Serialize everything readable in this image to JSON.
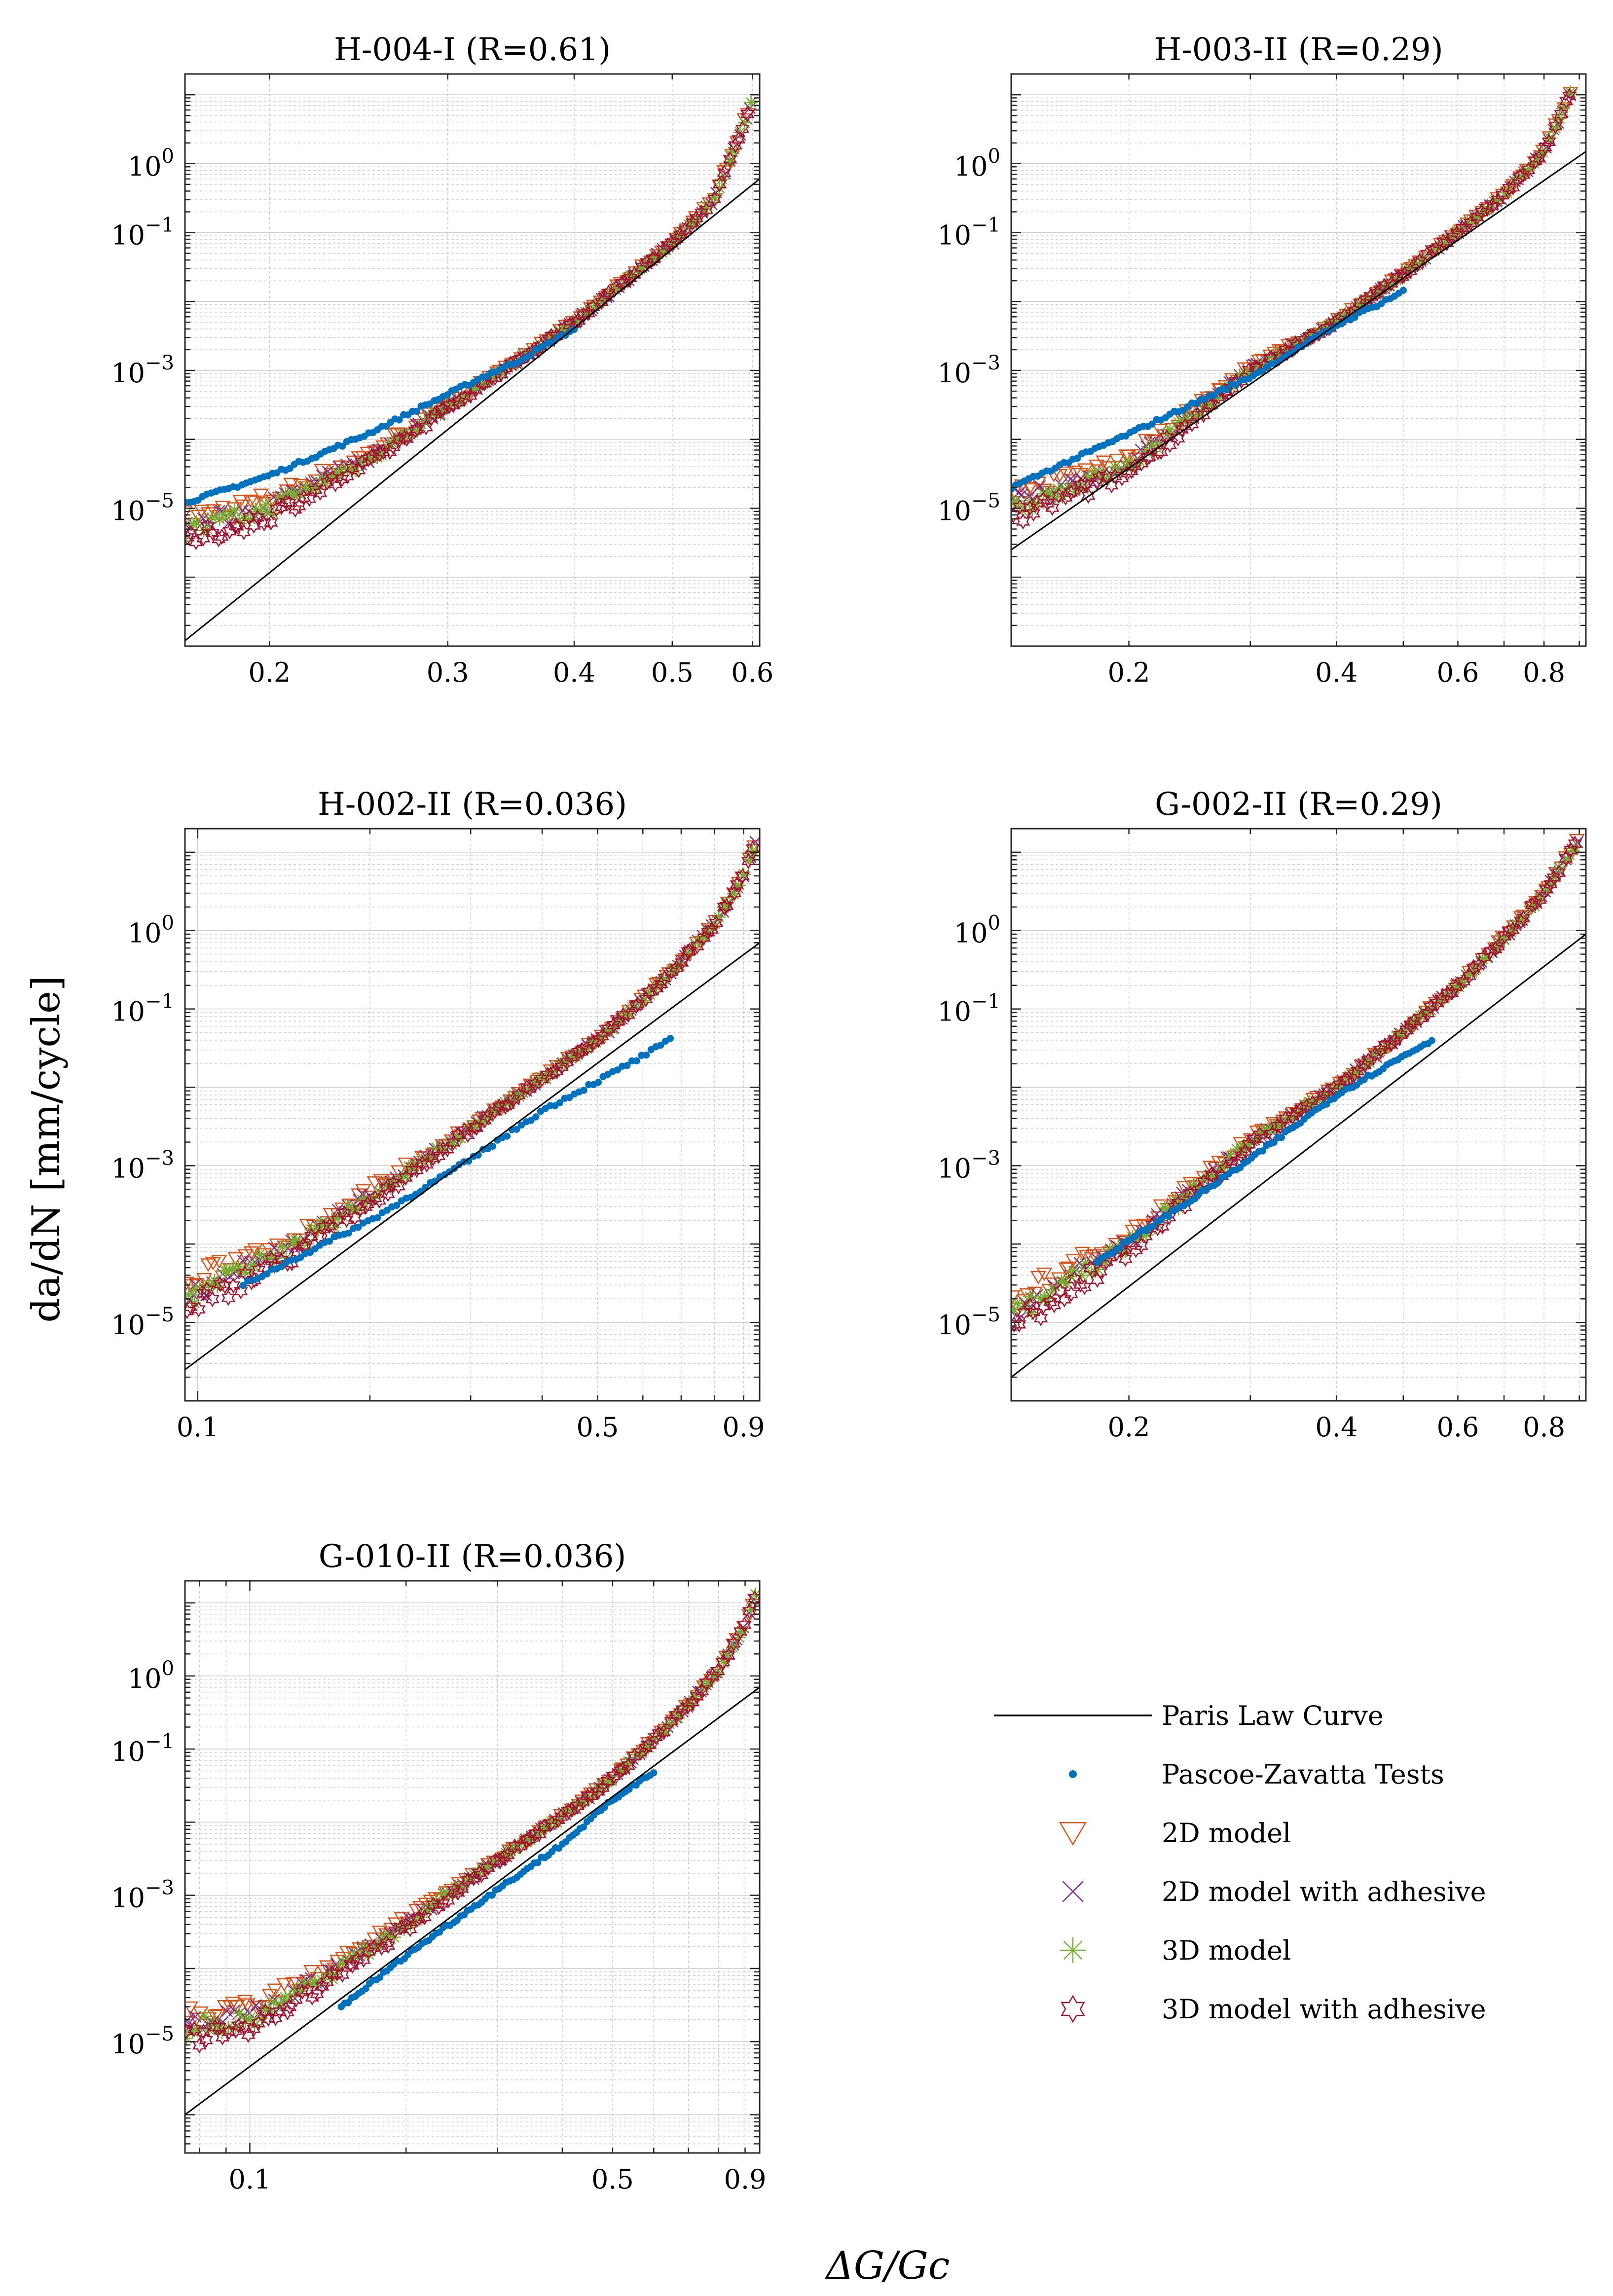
{
  "ylabel": "da/dN [mm/cycle]",
  "xlabel": "ΔG/Gc",
  "colors": {
    "paris": "#000000",
    "tests": "#0072BD",
    "model2d": "#D95319",
    "model2d_adh": "#7E2F8E",
    "model3d": "#77AC30",
    "model3d_adh": "#A2142F"
  },
  "legend": {
    "placement": "bottom-right",
    "entries": [
      {
        "key": "paris",
        "label": "Paris Law Curve",
        "marker": "line"
      },
      {
        "key": "tests",
        "label": "Pascoe-Zavatta Tests",
        "marker": "dot"
      },
      {
        "key": "model2d",
        "label": "2D model",
        "marker": "triangle-down"
      },
      {
        "key": "model2d_adh",
        "label": "2D model with adhesive",
        "marker": "x"
      },
      {
        "key": "model3d",
        "label": "3D model",
        "marker": "asterisk"
      },
      {
        "key": "model3d_adh",
        "label": "3D model with adhesive",
        "marker": "hexagram"
      }
    ]
  },
  "chart_data": [
    {
      "type": "scatter",
      "title": "H-004-I (R=0.61)",
      "xscale": "log",
      "yscale": "log",
      "xlim": [
        0.165,
        0.61
      ],
      "ylim": [
        1e-07,
        20
      ],
      "xticks": [
        {
          "v": 0.2,
          "label": "0.2"
        },
        {
          "v": 0.3,
          "label": "0.3"
        },
        {
          "v": 0.4,
          "label": "0.4"
        },
        {
          "v": 0.5,
          "label": "0.5"
        },
        {
          "v": 0.6,
          "label": "0.6"
        }
      ],
      "yticks": [
        {
          "v": 1e-05,
          "base": "10",
          "exp": "−5"
        },
        {
          "v": 0.001,
          "base": "10",
          "exp": "−3"
        },
        {
          "v": 0.1,
          "base": "10",
          "exp": "−1"
        },
        {
          "v": 1,
          "base": "10",
          "exp": "0"
        }
      ],
      "grid": true,
      "paris": {
        "x": [
          0.165,
          0.61
        ],
        "y": [
          1.2e-07,
          0.6
        ]
      },
      "tests": {
        "x": [
          0.165,
          0.2,
          0.25,
          0.3,
          0.33,
          0.35,
          0.4
        ],
        "y": [
          1.2e-05,
          3e-05,
          0.00012,
          0.00045,
          0.0009,
          0.0013,
          0.004
        ]
      },
      "model": {
        "x": [
          0.165,
          0.2,
          0.25,
          0.3,
          0.35,
          0.4,
          0.45,
          0.5,
          0.55,
          0.6
        ],
        "y": [
          4.5e-06,
          1e-05,
          5e-05,
          0.0003,
          0.0013,
          0.005,
          0.02,
          0.07,
          0.3,
          8
        ]
      }
    },
    {
      "type": "scatter",
      "title": "H-003-II (R=0.29)",
      "xscale": "log",
      "yscale": "log",
      "xlim": [
        0.135,
        0.92
      ],
      "ylim": [
        1e-07,
        20
      ],
      "xticks": [
        {
          "v": 0.2,
          "label": "0.2"
        },
        {
          "v": 0.4,
          "label": "0.4"
        },
        {
          "v": 0.6,
          "label": "0.6"
        },
        {
          "v": 0.8,
          "label": "0.8"
        }
      ],
      "yticks": [
        {
          "v": 1e-05,
          "base": "10",
          "exp": "−5"
        },
        {
          "v": 0.001,
          "base": "10",
          "exp": "−3"
        },
        {
          "v": 0.1,
          "base": "10",
          "exp": "−1"
        },
        {
          "v": 1,
          "base": "10",
          "exp": "0"
        }
      ],
      "grid": true,
      "paris": {
        "x": [
          0.135,
          0.92
        ],
        "y": [
          2.5e-06,
          1.5
        ]
      },
      "tests": {
        "x": [
          0.135,
          0.2,
          0.3,
          0.4,
          0.5
        ],
        "y": [
          2e-05,
          0.00012,
          0.0008,
          0.0045,
          0.014
        ]
      },
      "model": {
        "x": [
          0.135,
          0.2,
          0.3,
          0.4,
          0.5,
          0.6,
          0.7,
          0.8,
          0.88
        ],
        "y": [
          1e-05,
          4e-05,
          0.001,
          0.005,
          0.025,
          0.1,
          0.35,
          1.5,
          12
        ]
      }
    },
    {
      "type": "scatter",
      "title": "H-002-II (R=0.036)",
      "xscale": "log",
      "yscale": "log",
      "xlim": [
        0.095,
        0.96
      ],
      "ylim": [
        1e-06,
        20
      ],
      "xticks": [
        {
          "v": 0.1,
          "label": "0.1"
        },
        {
          "v": 0.5,
          "label": "0.5"
        },
        {
          "v": 0.9,
          "label": "0.9"
        }
      ],
      "yticks": [
        {
          "v": 1e-05,
          "base": "10",
          "exp": "−5"
        },
        {
          "v": 0.001,
          "base": "10",
          "exp": "−3"
        },
        {
          "v": 0.1,
          "base": "10",
          "exp": "−1"
        },
        {
          "v": 1,
          "base": "10",
          "exp": "0"
        }
      ],
      "grid": true,
      "paris": {
        "x": [
          0.095,
          0.96
        ],
        "y": [
          2.5e-06,
          0.7
        ]
      },
      "tests": {
        "x": [
          0.12,
          0.2,
          0.3,
          0.4,
          0.5,
          0.6,
          0.67
        ],
        "y": [
          3e-05,
          0.0002,
          0.0012,
          0.005,
          0.012,
          0.025,
          0.04
        ]
      },
      "model": {
        "x": [
          0.095,
          0.15,
          0.2,
          0.3,
          0.4,
          0.5,
          0.6,
          0.7,
          0.8,
          0.9,
          0.95
        ],
        "y": [
          2e-05,
          0.0001,
          0.0004,
          0.003,
          0.013,
          0.04,
          0.13,
          0.4,
          1.2,
          5,
          15
        ]
      }
    },
    {
      "type": "scatter",
      "title": "G-002-II (R=0.29)",
      "xscale": "log",
      "yscale": "log",
      "xlim": [
        0.135,
        0.92
      ],
      "ylim": [
        1e-06,
        20
      ],
      "xticks": [
        {
          "v": 0.2,
          "label": "0.2"
        },
        {
          "v": 0.4,
          "label": "0.4"
        },
        {
          "v": 0.6,
          "label": "0.6"
        },
        {
          "v": 0.8,
          "label": "0.8"
        }
      ],
      "yticks": [
        {
          "v": 1e-05,
          "base": "10",
          "exp": "−5"
        },
        {
          "v": 0.001,
          "base": "10",
          "exp": "−3"
        },
        {
          "v": 0.1,
          "base": "10",
          "exp": "−1"
        },
        {
          "v": 1,
          "base": "10",
          "exp": "0"
        }
      ],
      "grid": true,
      "paris": {
        "x": [
          0.135,
          0.92
        ],
        "y": [
          2e-06,
          0.9
        ]
      },
      "tests": {
        "x": [
          0.18,
          0.25,
          0.3,
          0.4,
          0.5,
          0.55
        ],
        "y": [
          6e-05,
          0.0004,
          0.0012,
          0.008,
          0.025,
          0.04
        ]
      },
      "model": {
        "x": [
          0.135,
          0.2,
          0.25,
          0.3,
          0.4,
          0.5,
          0.6,
          0.7,
          0.8,
          0.9
        ],
        "y": [
          1.2e-05,
          0.0001,
          0.0005,
          0.002,
          0.01,
          0.05,
          0.2,
          0.8,
          3,
          15
        ]
      }
    },
    {
      "type": "scatter",
      "title": "G-010-II (R=0.036)",
      "xscale": "log",
      "yscale": "log",
      "xlim": [
        0.075,
        0.96
      ],
      "ylim": [
        3e-07,
        20
      ],
      "xticks": [
        {
          "v": 0.1,
          "label": "0.1"
        },
        {
          "v": 0.5,
          "label": "0.5"
        },
        {
          "v": 0.9,
          "label": "0.9"
        }
      ],
      "yticks": [
        {
          "v": 1e-05,
          "base": "10",
          "exp": "−5"
        },
        {
          "v": 0.001,
          "base": "10",
          "exp": "−3"
        },
        {
          "v": 0.1,
          "base": "10",
          "exp": "−1"
        },
        {
          "v": 1,
          "base": "10",
          "exp": "0"
        }
      ],
      "grid": true,
      "paris": {
        "x": [
          0.075,
          0.96
        ],
        "y": [
          1e-06,
          0.7
        ]
      },
      "tests": {
        "x": [
          0.15,
          0.2,
          0.3,
          0.4,
          0.5,
          0.6
        ],
        "y": [
          3e-05,
          0.00015,
          0.0012,
          0.005,
          0.02,
          0.05
        ]
      },
      "model": {
        "x": [
          0.075,
          0.1,
          0.12,
          0.15,
          0.2,
          0.3,
          0.4,
          0.5,
          0.6,
          0.7,
          0.8,
          0.9,
          0.95
        ],
        "y": [
          1.5e-05,
          2e-05,
          4e-05,
          0.0001,
          0.0004,
          0.003,
          0.012,
          0.04,
          0.13,
          0.4,
          1.2,
          5,
          15
        ]
      }
    }
  ]
}
